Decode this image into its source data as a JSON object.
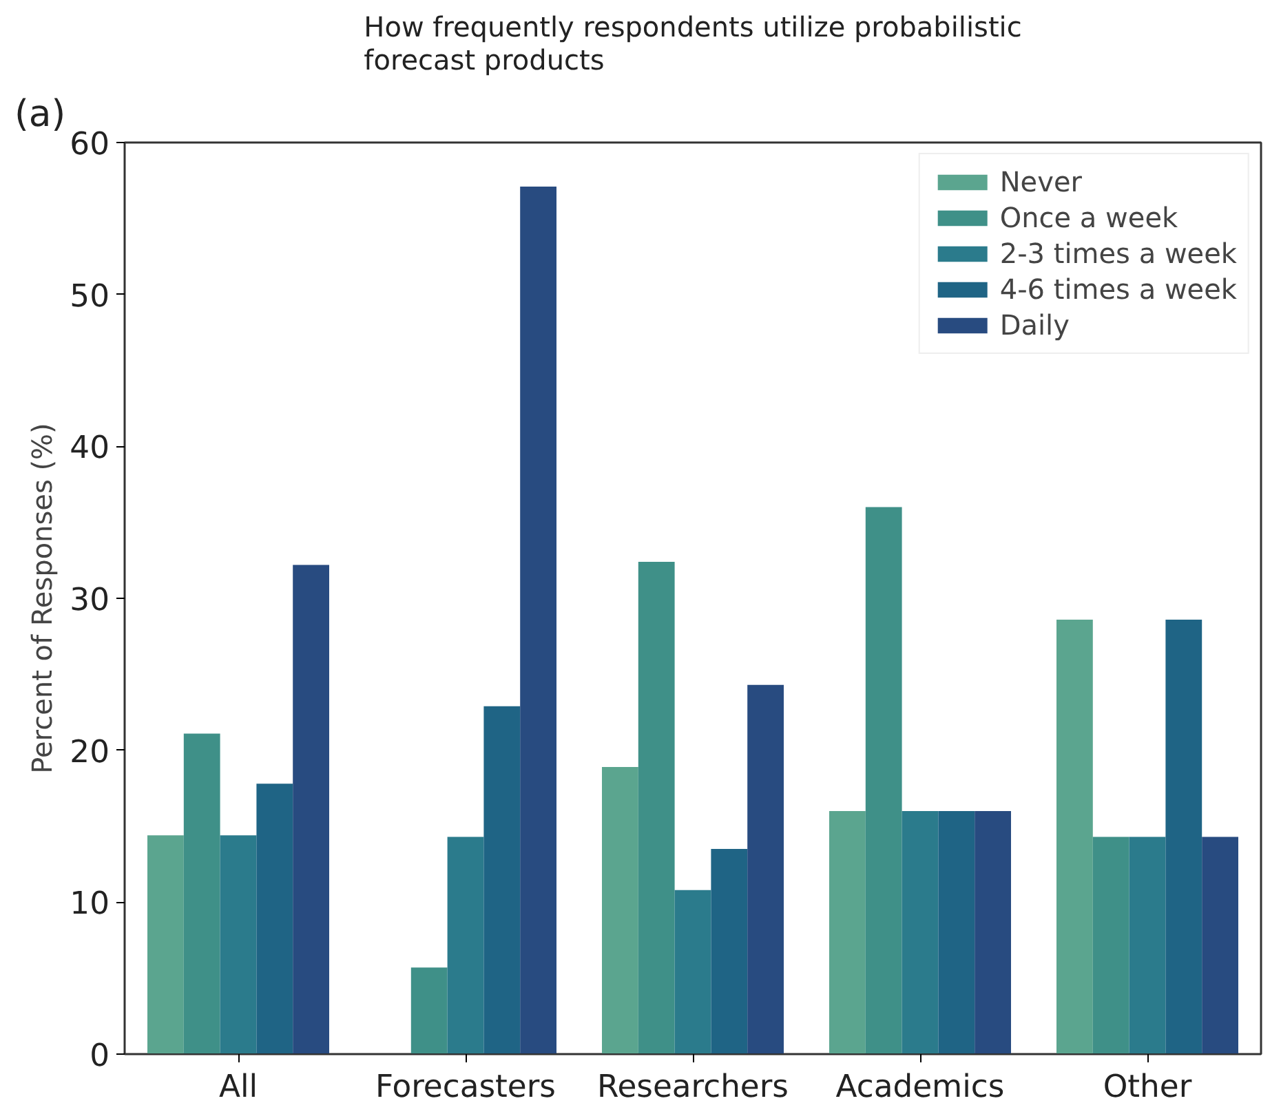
{
  "chart_data": {
    "type": "bar",
    "title": "How frequently respondents utilize probabilistic\nforecast products",
    "ylabel": "Percent of Responses (%)",
    "annotations": [
      "(a)"
    ],
    "categories": [
      "All",
      "Forecasters",
      "Researchers",
      "Academics",
      "Other"
    ],
    "series": [
      {
        "name": "Never",
        "color": "#5ba58f",
        "values": [
          14.4,
          0,
          18.9,
          16,
          28.6
        ]
      },
      {
        "name": "Once a week",
        "color": "#3f9088",
        "values": [
          21.1,
          5.7,
          32.4,
          36,
          14.3
        ]
      },
      {
        "name": "2-3 times a week",
        "color": "#2b7b8c",
        "values": [
          14.4,
          14.3,
          10.8,
          16,
          14.3
        ]
      },
      {
        "name": "4-6 times a week",
        "color": "#1f6485",
        "values": [
          17.8,
          22.9,
          13.5,
          16,
          28.6
        ]
      },
      {
        "name": "Daily",
        "color": "#284b80",
        "values": [
          32.2,
          57.1,
          24.3,
          16,
          14.3
        ]
      }
    ],
    "ylim": [
      0,
      60
    ],
    "yticks": [
      0,
      10,
      20,
      30,
      40,
      50,
      60
    ],
    "grid": false,
    "legend": "top right"
  }
}
